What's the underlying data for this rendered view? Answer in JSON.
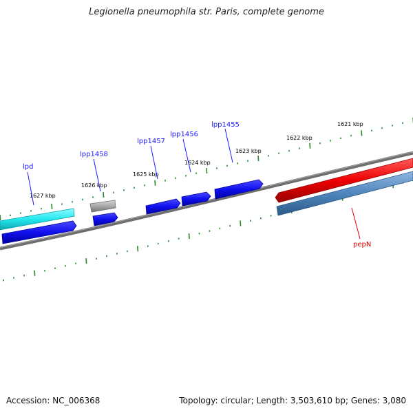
{
  "title": "Legionella pneumophila str. Paris, complete genome",
  "footer": {
    "accession_label": "Accession:",
    "accession": "NC_006368",
    "summary": "Topology: circular; Length: 3,503,610 bp; Genes: 3,080"
  },
  "scale": {
    "tick_labels": [
      "1621 kbp",
      "1622 kbp",
      "1623 kbp",
      "1624 kbp",
      "1625 kbp",
      "1626 kbp",
      "1627 kbp"
    ]
  },
  "genes": [
    {
      "name": "lpd",
      "strand": "reverse",
      "color": "#1a1aff",
      "label_color": "#1a1aff"
    },
    {
      "name": "lpp1458",
      "strand": "forward",
      "color": "#1a1aff",
      "label_color": "#1a1aff"
    },
    {
      "name": "lpp1457",
      "strand": "forward",
      "color": "#1a1aff",
      "label_color": "#1a1aff"
    },
    {
      "name": "lpp1456",
      "strand": "forward",
      "color": "#1a1aff",
      "label_color": "#1a1aff"
    },
    {
      "name": "lpp1455",
      "strand": "forward",
      "color": "#1a1aff",
      "label_color": "#1a1aff"
    },
    {
      "name": "pepN",
      "strand": "reverse",
      "color": "#ee0000",
      "label_color": "#dd0000"
    }
  ],
  "colors": {
    "cds": "#1a1aff",
    "gene_cyan": "#22e8ee",
    "gene_grey": "#a8a8a8",
    "gene_red": "#ee0000",
    "gene_steelblue": "#4f86bd",
    "backbone": "#808080",
    "ticks": "#2a8a2a"
  }
}
